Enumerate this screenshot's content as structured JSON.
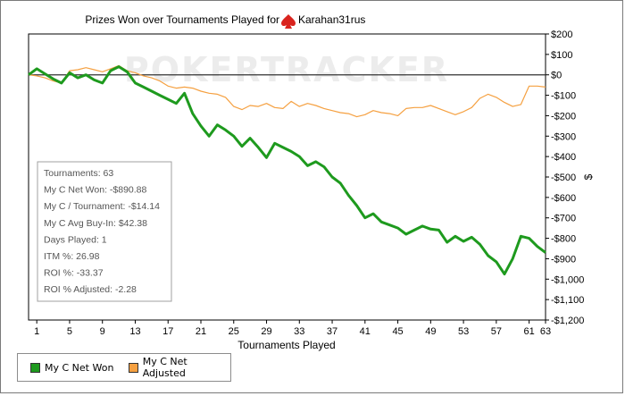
{
  "chart_data": {
    "type": "line",
    "title": "Prizes Won over Tournaments Played for",
    "player": "Karahan31rus",
    "xlabel": "Tournaments Played",
    "ylabel": "$",
    "watermark": "POKERTRACKER",
    "xlim": [
      0,
      63
    ],
    "ylim": [
      -1200,
      200
    ],
    "x_ticks": [
      1,
      5,
      9,
      13,
      17,
      21,
      25,
      29,
      33,
      37,
      41,
      45,
      49,
      53,
      57,
      61,
      63
    ],
    "y_ticks": [
      200,
      100,
      0,
      -100,
      -200,
      -300,
      -400,
      -500,
      -600,
      -700,
      -800,
      -900,
      -1000,
      -1100,
      -1200
    ],
    "y_tick_labels": [
      "$200",
      "$100",
      "$0",
      "-$100",
      "-$200",
      "-$300",
      "-$400",
      "-$500",
      "-$600",
      "-$700",
      "-$800",
      "-$900",
      "-$1,000",
      "-$1,100",
      "-$1,200"
    ],
    "grid": false,
    "series": [
      {
        "name": "My C Net Won",
        "color": "#1e9a1e",
        "x": [
          0,
          1,
          2,
          3,
          4,
          5,
          6,
          7,
          8,
          9,
          10,
          11,
          12,
          13,
          14,
          15,
          16,
          17,
          18,
          19,
          20,
          21,
          22,
          23,
          24,
          25,
          26,
          27,
          28,
          29,
          30,
          31,
          32,
          33,
          34,
          35,
          36,
          37,
          38,
          39,
          40,
          41,
          42,
          43,
          44,
          45,
          46,
          47,
          48,
          49,
          50,
          51,
          52,
          53,
          54,
          55,
          56,
          57,
          58,
          59,
          60,
          61,
          62,
          63
        ],
        "values": [
          0,
          30,
          5,
          -20,
          -40,
          10,
          -15,
          0,
          -25,
          -40,
          20,
          40,
          15,
          -40,
          -60,
          -80,
          -100,
          -120,
          -140,
          -90,
          -190,
          -250,
          -300,
          -245,
          -270,
          -300,
          -350,
          -310,
          -355,
          -405,
          -335,
          -355,
          -375,
          -400,
          -445,
          -425,
          -450,
          -500,
          -530,
          -590,
          -640,
          -700,
          -680,
          -720,
          -735,
          -750,
          -780,
          -760,
          -740,
          -755,
          -760,
          -820,
          -790,
          -815,
          -795,
          -830,
          -885,
          -915,
          -975,
          -900,
          -790,
          -800,
          -840,
          -870
        ]
      },
      {
        "name": "My C Net Adjusted",
        "color": "#f5a040",
        "x": [
          0,
          1,
          2,
          3,
          4,
          5,
          6,
          7,
          8,
          9,
          10,
          11,
          12,
          13,
          14,
          15,
          16,
          17,
          18,
          19,
          20,
          21,
          22,
          23,
          24,
          25,
          26,
          27,
          28,
          29,
          30,
          31,
          32,
          33,
          34,
          35,
          36,
          37,
          38,
          39,
          40,
          41,
          42,
          43,
          44,
          45,
          46,
          47,
          48,
          49,
          50,
          51,
          52,
          53,
          54,
          55,
          56,
          57,
          58,
          59,
          60,
          61,
          62,
          63
        ],
        "values": [
          0,
          -5,
          -15,
          -30,
          -40,
          20,
          25,
          35,
          25,
          15,
          30,
          45,
          20,
          10,
          -5,
          -15,
          -30,
          -55,
          -65,
          -60,
          -65,
          -80,
          -90,
          -95,
          -110,
          -155,
          -170,
          -150,
          -155,
          -140,
          -160,
          -165,
          -130,
          -155,
          -140,
          -150,
          -165,
          -175,
          -185,
          -190,
          -205,
          -195,
          -175,
          -185,
          -190,
          -200,
          -165,
          -160,
          -160,
          -150,
          -165,
          -180,
          -195,
          -180,
          -160,
          -115,
          -95,
          -110,
          -135,
          -155,
          -145,
          -55,
          -55,
          -60
        ]
      }
    ],
    "stats_box": [
      "Tournaments: 63",
      "My C Net Won: -$890.88",
      "My C / Tournament: -$14.14",
      "My C Avg Buy-In: $42.38",
      "Days Played: 1",
      "ITM %: 26.98",
      "ROI %: -33.37",
      "ROI % Adjusted: -2.28"
    ],
    "legend_position": "bottom-left"
  }
}
